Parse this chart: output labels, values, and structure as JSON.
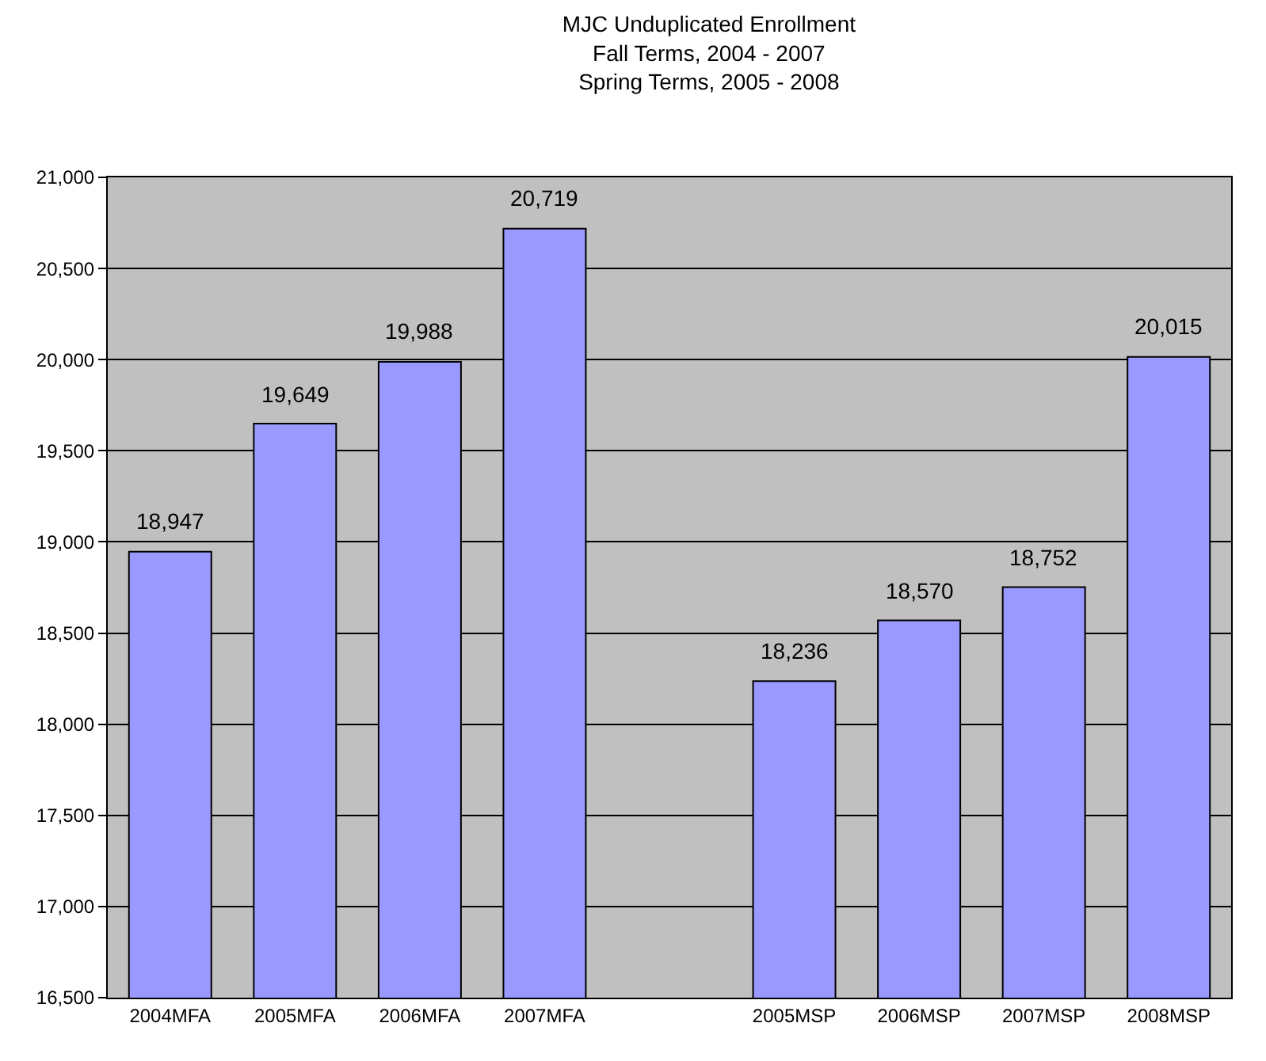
{
  "chart_data": {
    "type": "bar",
    "title": "MJC Unduplicated Enrollment\nFall Terms, 2004 - 2007\nSpring Terms, 2005 - 2008",
    "categories": [
      "2004MFA",
      "2005MFA",
      "2006MFA",
      "2007MFA",
      null,
      "2005MSP",
      "2006MSP",
      "2007MSP",
      "2008MSP"
    ],
    "values": [
      18947,
      19649,
      19988,
      20719,
      null,
      18236,
      18570,
      18752,
      20015
    ],
    "value_labels": [
      "18,947",
      "19,649",
      "19,988",
      "20,719",
      null,
      "18,236",
      "18,570",
      "18,752",
      "20,015"
    ],
    "color": "#9999ff",
    "grid": "y",
    "legend": false,
    "ylim": [
      16500,
      21000
    ],
    "yticks": [
      {
        "value": 16500,
        "label": "16,500"
      },
      {
        "value": 17000,
        "label": "17,000"
      },
      {
        "value": 17500,
        "label": "17,500"
      },
      {
        "value": 18000,
        "label": "18,000"
      },
      {
        "value": 18500,
        "label": "18,500"
      },
      {
        "value": 19000,
        "label": "19,000"
      },
      {
        "value": 19500,
        "label": "19,500"
      },
      {
        "value": 20000,
        "label": "20,000"
      },
      {
        "value": 20500,
        "label": "20,500"
      },
      {
        "value": 21000,
        "label": "21,000"
      }
    ]
  }
}
